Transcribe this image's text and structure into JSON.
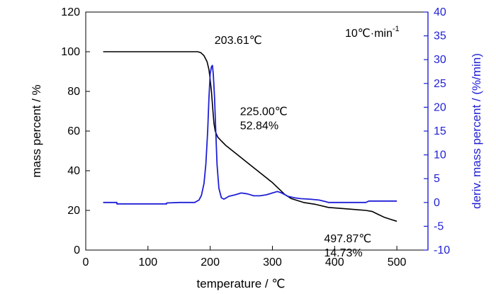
{
  "chart_data": {
    "type": "line",
    "xlabel": "temperature / ℃",
    "ylabel_left": "mass percent / %",
    "ylabel_right": "deriv. mass percent / (%/min)",
    "xlim": [
      0,
      550
    ],
    "ylim_left": [
      0,
      120
    ],
    "ylim_right": [
      -10,
      40
    ],
    "x_ticks": [
      0,
      100,
      200,
      300,
      400,
      500
    ],
    "y_ticks_left": [
      0,
      20,
      40,
      60,
      80,
      100,
      120
    ],
    "y_ticks_right": [
      -10,
      -5,
      0,
      5,
      10,
      15,
      20,
      25,
      30,
      35,
      40
    ],
    "grid": false,
    "colors": {
      "mass": "#000000",
      "deriv": "#1f1fd6"
    },
    "heating_rate": {
      "base": "10℃·min",
      "sup": "-1"
    },
    "series": [
      {
        "axis": "left",
        "color": "#000000",
        "points": [
          [
            28,
            100
          ],
          [
            60,
            100
          ],
          [
            100,
            100
          ],
          [
            140,
            100
          ],
          [
            180,
            100
          ],
          [
            185,
            99.5
          ],
          [
            190,
            98
          ],
          [
            195,
            95
          ],
          [
            198,
            91
          ],
          [
            200,
            86
          ],
          [
            202,
            80
          ],
          [
            204,
            72
          ],
          [
            206,
            64
          ],
          [
            208,
            60
          ],
          [
            212,
            57
          ],
          [
            218,
            55
          ],
          [
            225,
            52.8
          ],
          [
            240,
            49
          ],
          [
            260,
            44
          ],
          [
            280,
            39
          ],
          [
            300,
            34
          ],
          [
            320,
            28
          ],
          [
            330,
            26
          ],
          [
            340,
            25
          ],
          [
            350,
            24
          ],
          [
            370,
            23
          ],
          [
            390,
            21.5
          ],
          [
            410,
            21
          ],
          [
            430,
            20.5
          ],
          [
            450,
            20
          ],
          [
            460,
            19.5
          ],
          [
            470,
            18
          ],
          [
            480,
            16.5
          ],
          [
            490,
            15.5
          ],
          [
            498,
            14.7
          ],
          [
            500,
            14.5
          ]
        ]
      },
      {
        "axis": "right",
        "color": "#1f1fd6",
        "points": [
          [
            28,
            0
          ],
          [
            50,
            0
          ],
          [
            50,
            -0.3
          ],
          [
            130,
            -0.3
          ],
          [
            130,
            -0.1
          ],
          [
            150,
            0
          ],
          [
            175,
            0
          ],
          [
            182,
            0.5
          ],
          [
            186,
            1.5
          ],
          [
            190,
            4
          ],
          [
            193,
            8
          ],
          [
            196,
            15
          ],
          [
            198,
            22
          ],
          [
            200,
            27
          ],
          [
            202,
            28.5
          ],
          [
            203.6,
            28.8
          ],
          [
            205,
            27
          ],
          [
            207,
            22
          ],
          [
            209,
            15
          ],
          [
            211,
            8
          ],
          [
            214,
            3
          ],
          [
            218,
            1
          ],
          [
            222,
            0.7
          ],
          [
            230,
            1.3
          ],
          [
            240,
            1.6
          ],
          [
            250,
            2
          ],
          [
            260,
            1.8
          ],
          [
            270,
            1.4
          ],
          [
            280,
            1.4
          ],
          [
            290,
            1.6
          ],
          [
            300,
            2
          ],
          [
            308,
            2.3
          ],
          [
            315,
            2
          ],
          [
            325,
            1.3
          ],
          [
            335,
            1
          ],
          [
            345,
            0.8
          ],
          [
            360,
            0.7
          ],
          [
            375,
            0.5
          ],
          [
            385,
            0.2
          ],
          [
            390,
            0
          ],
          [
            400,
            0
          ],
          [
            420,
            0
          ],
          [
            440,
            0
          ],
          [
            450,
            0
          ],
          [
            455,
            0.3
          ],
          [
            470,
            0.3
          ],
          [
            500,
            0.3
          ]
        ]
      }
    ],
    "annotations": [
      {
        "lines": [
          "203.61℃"
        ],
        "x": 207,
        "y": 104
      },
      {
        "lines": [
          "225.00℃",
          "52.84%"
        ],
        "x": 248,
        "y": 68
      },
      {
        "lines": [
          "497.87℃",
          "14.73%"
        ],
        "x": 383,
        "y": 4
      }
    ]
  }
}
